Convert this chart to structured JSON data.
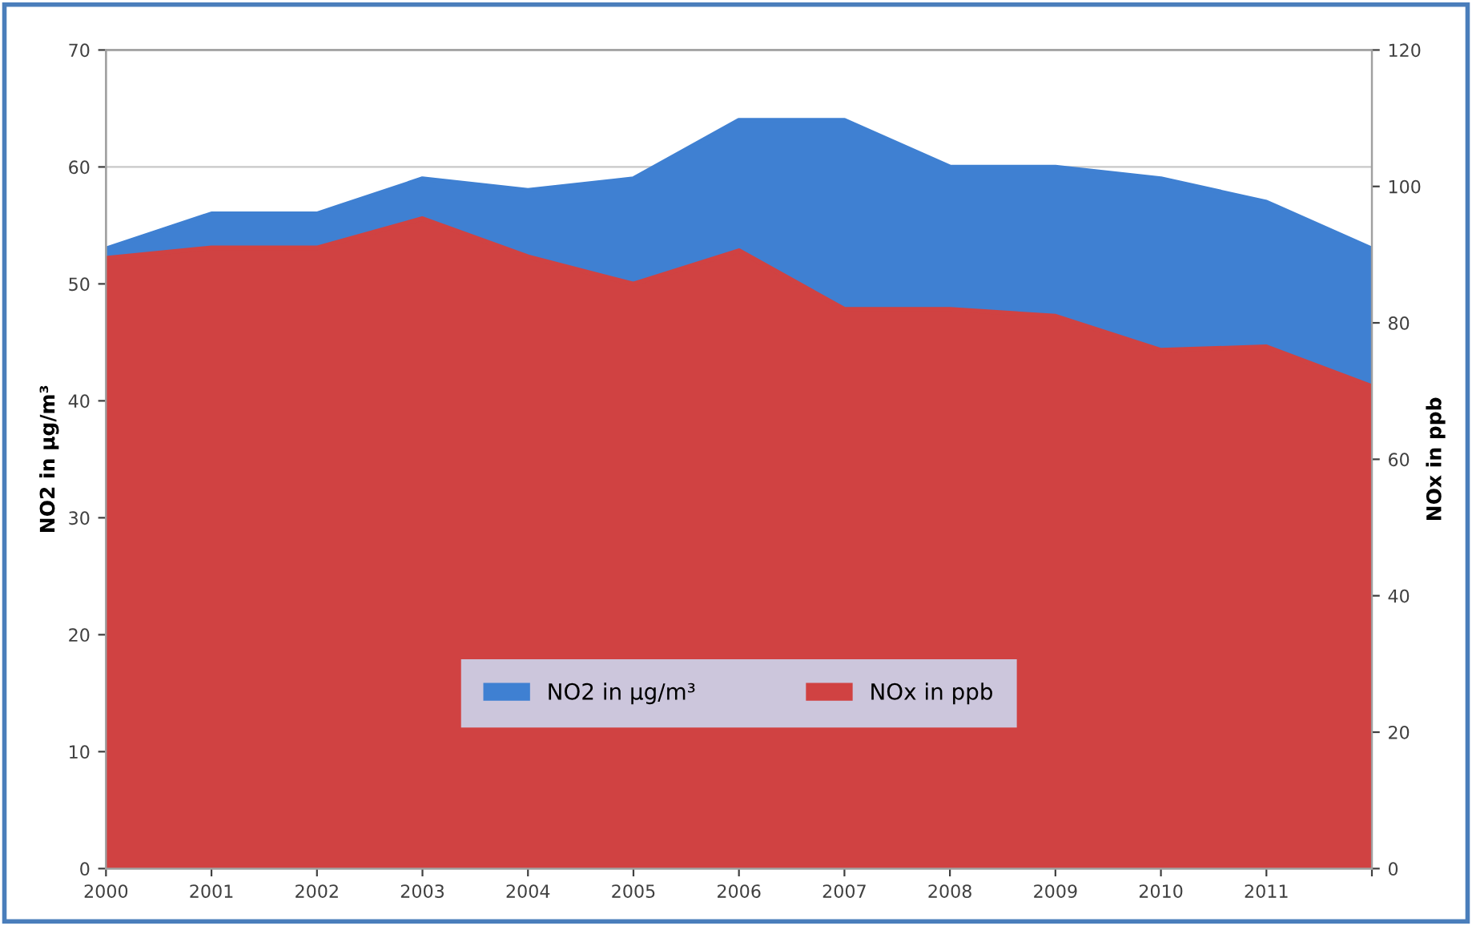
{
  "chart_data": {
    "type": "area",
    "ylabel": "NO2 in µg/m³",
    "y2label": "NOx in ppb",
    "x": [
      2000,
      2001,
      2002,
      2003,
      2004,
      2005,
      2006,
      2007,
      2008,
      2009,
      2010,
      2011,
      2012
    ],
    "xlim": [
      2000,
      2012
    ],
    "xticks": [
      2000,
      2001,
      2002,
      2003,
      2004,
      2005,
      2006,
      2007,
      2008,
      2009,
      2010,
      2011,
      {
        "value": 2012,
        "label": null
      }
    ],
    "ylim": [
      0,
      70
    ],
    "yticks": [
      0,
      10,
      20,
      30,
      40,
      50,
      60,
      70
    ],
    "y2lim": [
      0,
      120
    ],
    "y2ticks": [
      0,
      20,
      40,
      60,
      80,
      100,
      120
    ],
    "grid": "y",
    "legend": "bottom",
    "series": [
      {
        "name": "NO2 in µg/m³",
        "color": "#3f80d2",
        "values": [
          53,
          56,
          56,
          59,
          58,
          59,
          64,
          64,
          60,
          60,
          59,
          57,
          53
        ]
      },
      {
        "name": "NOx in ppb",
        "color": "#d04242",
        "axis": "y2",
        "values": [
          89.5,
          91,
          91,
          95.3,
          89.7,
          85.7,
          90.6,
          82,
          82,
          81,
          76,
          76.5,
          70.7
        ]
      }
    ]
  }
}
